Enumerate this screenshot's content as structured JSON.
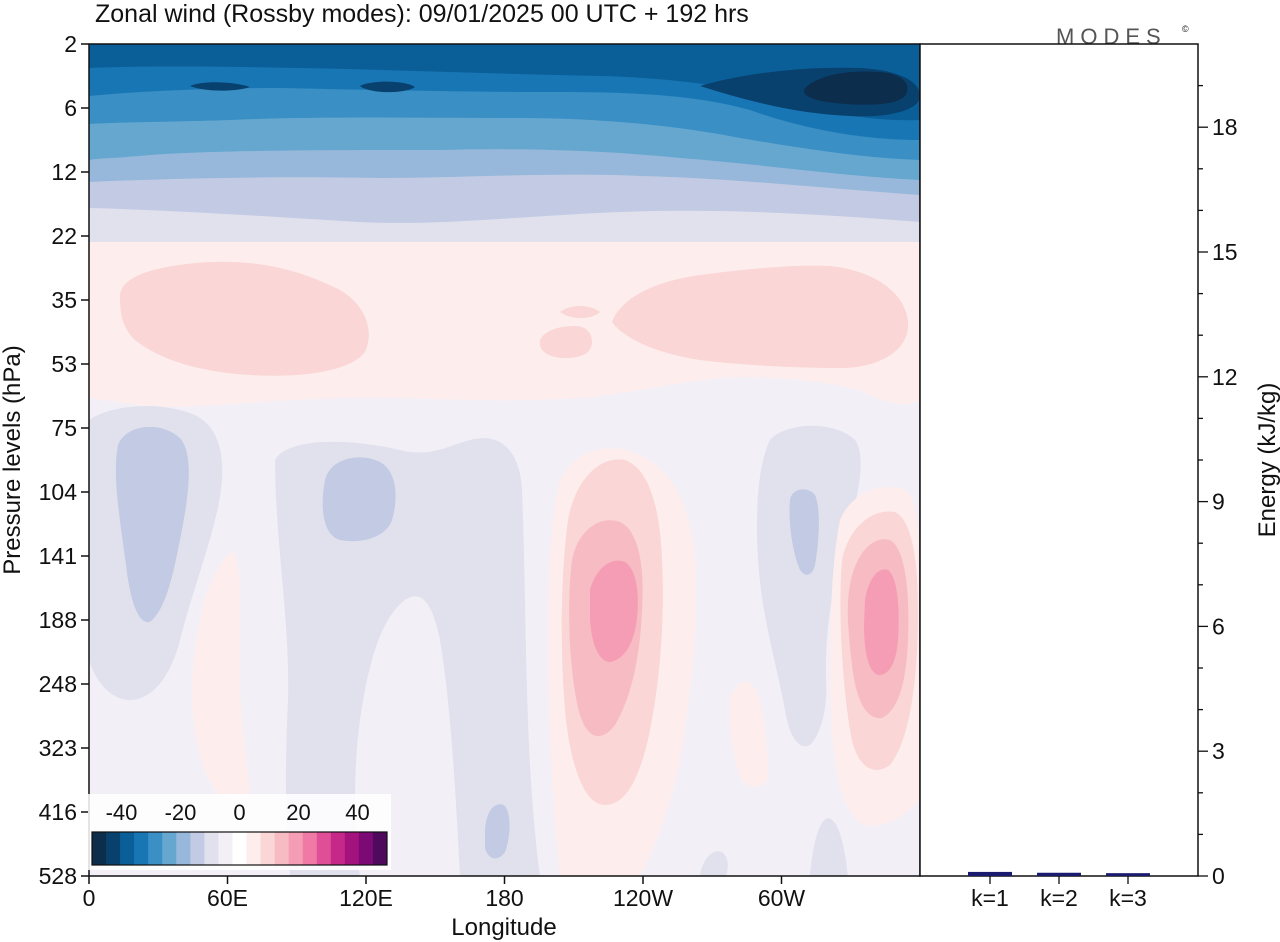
{
  "logo": {
    "text": "MODES",
    "mark": "©"
  },
  "chart_data": [
    {
      "type": "heatmap",
      "title": "Zonal wind (Rossby modes):  09/01/2025  00 UTC  + 192 hrs",
      "xlabel": "Longitude",
      "ylabel": "Pressure levels (hPa)",
      "x_ticks": [
        "0",
        "60E",
        "120E",
        "180",
        "120W",
        "60W"
      ],
      "x_tick_values": [
        0,
        60,
        120,
        180,
        240,
        300
      ],
      "xlim": [
        0,
        360
      ],
      "y_ticks": [
        "2",
        "6",
        "12",
        "22",
        "35",
        "53",
        "75",
        "104",
        "141",
        "188",
        "248",
        "323",
        "416",
        "528"
      ],
      "colorbar": {
        "tick_labels": [
          "-40",
          "-20",
          "0",
          "20",
          "40"
        ],
        "range": [
          -50,
          50
        ],
        "step": 5,
        "colors": [
          "#0d2d4d",
          "#08416e",
          "#0b5f99",
          "#1976b5",
          "#3a8fc4",
          "#66a7d0",
          "#97b8da",
          "#c2cbe3",
          "#e1e1ee",
          "#f3eff6",
          "#ffffff",
          "#fdeeed",
          "#fad6d6",
          "#f7bbc3",
          "#f59db4",
          "#f07aa6",
          "#e04e98",
          "#c6288a",
          "#a4127e",
          "#7c0a74",
          "#4f0a5e"
        ]
      },
      "features": [
        {
          "kind": "stratospheric easterly band",
          "lon": [
            0,
            360
          ],
          "p_top": 2,
          "p_bottom": 22,
          "peak_u": -45,
          "peak_lon": 330,
          "peak_p": 5
        },
        {
          "kind": "westerly",
          "lon": [
            15,
            120
          ],
          "p": [
            28,
            60
          ],
          "u": 7
        },
        {
          "kind": "westerly",
          "lon": [
            195,
            355
          ],
          "p": [
            26,
            60
          ],
          "u": 7
        },
        {
          "kind": "easterly",
          "lon": [
            12,
            45
          ],
          "p": [
            85,
            195
          ],
          "u": -7
        },
        {
          "kind": "easterly",
          "lon": [
            100,
            130
          ],
          "p": [
            100,
            145
          ],
          "u": -7
        },
        {
          "kind": "easterly",
          "lon": [
            305,
            315
          ],
          "p": [
            100,
            150
          ],
          "u": -7
        },
        {
          "kind": "westerly jet",
          "lon": [
            215,
            240
          ],
          "p": [
            80,
            420
          ],
          "peak_u": 18,
          "peak_lon": 228,
          "peak_p": 190
        },
        {
          "kind": "westerly jet",
          "lon": [
            325,
            360
          ],
          "p": [
            115,
            380
          ],
          "peak_u": 18,
          "peak_lon": 345,
          "peak_p": 190
        }
      ]
    },
    {
      "type": "bar",
      "ylabel": "Energy (kJ/kg)",
      "categories": [
        "k=1",
        "k=2",
        "k=3"
      ],
      "values": [
        0.05,
        0.03,
        0.02
      ],
      "ylim": [
        0,
        20
      ],
      "y_ticks": [
        "0",
        "3",
        "6",
        "9",
        "12",
        "15",
        "18"
      ],
      "y_tick_values": [
        0,
        3,
        6,
        9,
        12,
        15,
        18
      ],
      "bar_color": "#1a1a6e"
    }
  ]
}
